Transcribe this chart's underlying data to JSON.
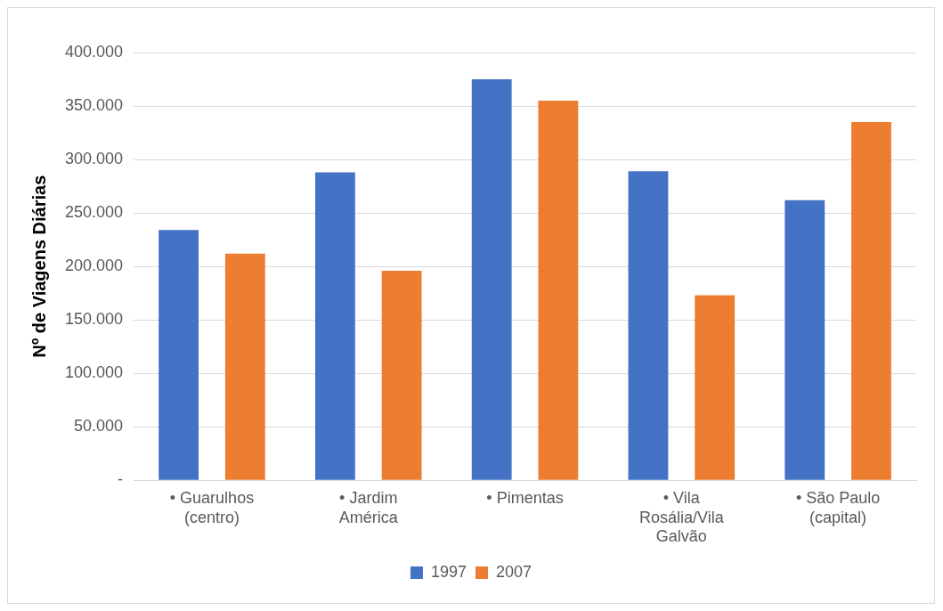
{
  "chart_data": {
    "type": "bar",
    "ylabel": "Nº de Viagens Diárias",
    "categories": [
      "• Guarulhos (centro)",
      "• Jardim América",
      "• Pimentas",
      "• Vila Rosália/Vila Galvão",
      "• São Paulo (capital)"
    ],
    "series": [
      {
        "name": "1997",
        "color": "#4472c4",
        "values": [
          234000,
          288000,
          375000,
          289000,
          262000
        ]
      },
      {
        "name": "2007",
        "color": "#ed7d31",
        "values": [
          212000,
          196000,
          355000,
          173000,
          335000
        ]
      }
    ],
    "ylim": [
      0,
      400000
    ],
    "yticks": [
      {
        "value": 0,
        "label": "-"
      },
      {
        "value": 50000,
        "label": "50.000"
      },
      {
        "value": 100000,
        "label": "100.000"
      },
      {
        "value": 150000,
        "label": "150.000"
      },
      {
        "value": 200000,
        "label": "200.000"
      },
      {
        "value": 250000,
        "label": "250.000"
      },
      {
        "value": 300000,
        "label": "300.000"
      },
      {
        "value": 350000,
        "label": "350.000"
      },
      {
        "value": 400000,
        "label": "400.000"
      }
    ],
    "grid": "y",
    "legend": "bottom"
  }
}
